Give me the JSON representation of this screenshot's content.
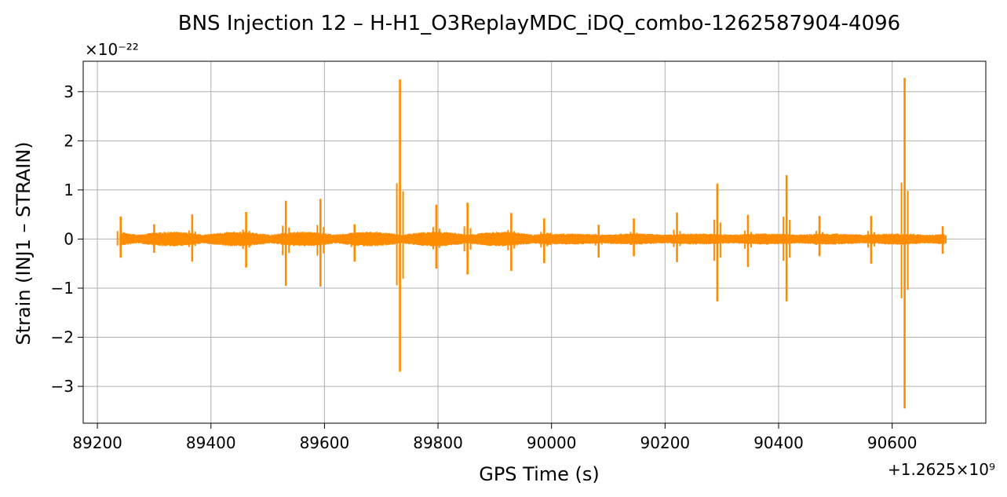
{
  "chart_data": {
    "type": "line",
    "title": "BNS Injection 12 – H-H1_O3ReplayMDC_iDQ_combo-1262587904-4096",
    "xlabel": "GPS Time (s)",
    "ylabel": "Strain (INJ1 – STRAIN)",
    "x_offset_label": "+1.2625×10⁹",
    "y_scale_label": "×10⁻²²",
    "xlim": [
      89175,
      90765
    ],
    "ylim": [
      -3.75,
      3.62
    ],
    "x_ticks": [
      89200,
      89400,
      89600,
      89800,
      90000,
      90200,
      90400,
      90600
    ],
    "y_ticks": [
      -3,
      -2,
      -1,
      0,
      1,
      2,
      3
    ],
    "grid": true,
    "series_color": "#ff8c00",
    "x_range_data": [
      89240,
      90692
    ],
    "baseline_noise_amplitude": 0.12,
    "glitches": [
      {
        "x": 89241,
        "max": 0.46,
        "min": -0.38
      },
      {
        "x": 89300,
        "max": 0.3,
        "min": -0.28
      },
      {
        "x": 89367,
        "max": 0.5,
        "min": -0.46
      },
      {
        "x": 89462,
        "max": 0.55,
        "min": -0.58
      },
      {
        "x": 89532,
        "max": 0.78,
        "min": -0.95
      },
      {
        "x": 89593,
        "max": 0.82,
        "min": -0.97
      },
      {
        "x": 89653,
        "max": 0.3,
        "min": -0.46
      },
      {
        "x": 89733,
        "max": 3.25,
        "min": -2.7
      },
      {
        "x": 89797,
        "max": 0.7,
        "min": -0.6
      },
      {
        "x": 89852,
        "max": 0.74,
        "min": -0.72
      },
      {
        "x": 89929,
        "max": 0.53,
        "min": -0.65
      },
      {
        "x": 89987,
        "max": 0.42,
        "min": -0.49
      },
      {
        "x": 90083,
        "max": 0.29,
        "min": -0.38
      },
      {
        "x": 90145,
        "max": 0.42,
        "min": -0.35
      },
      {
        "x": 90221,
        "max": 0.54,
        "min": -0.47
      },
      {
        "x": 90292,
        "max": 1.13,
        "min": -1.27
      },
      {
        "x": 90346,
        "max": 0.49,
        "min": -0.57
      },
      {
        "x": 90414,
        "max": 1.3,
        "min": -1.27
      },
      {
        "x": 90472,
        "max": 0.47,
        "min": -0.35
      },
      {
        "x": 90563,
        "max": 0.47,
        "min": -0.5
      },
      {
        "x": 90622,
        "max": 3.28,
        "min": -3.45
      },
      {
        "x": 90689,
        "max": 0.26,
        "min": -0.3
      }
    ]
  }
}
